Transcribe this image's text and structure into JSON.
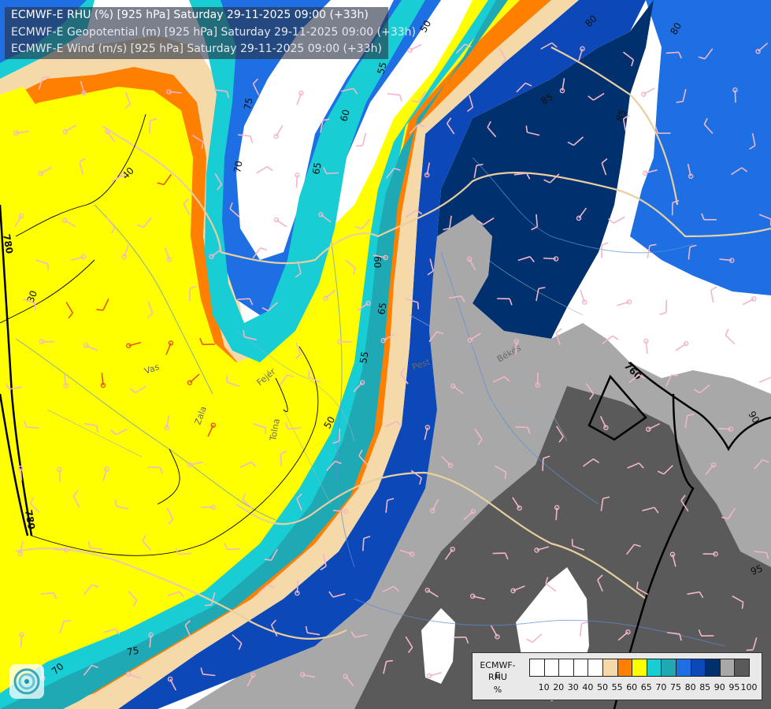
{
  "title": {
    "line1": "ECMWF-E RHU (%) [925 hPa] Saturday 29-11-2025 09:00 (+33h)",
    "line2": "ECMWF-E Geopotential (m) [925 hPa] Saturday 29-11-2025 09:00 (+33h)",
    "line3": "ECMWF-E Wind (m/s) [925 hPa] Saturday 29-11-2025 09:00 (+33h)"
  },
  "legend": {
    "label_line1": "ECMWF-E",
    "label_line2": "RHU",
    "label_line3": "%",
    "bins": [
      {
        "tick": "10",
        "color": "#ffffff"
      },
      {
        "tick": "20",
        "color": "#ffffff"
      },
      {
        "tick": "30",
        "color": "#ffffff"
      },
      {
        "tick": "40",
        "color": "#ffffff"
      },
      {
        "tick": "50",
        "color": "#ffffff"
      },
      {
        "tick": "55",
        "color": "#f5d9a8"
      },
      {
        "tick": "60",
        "color": "#ff7f00"
      },
      {
        "tick": "65",
        "color": "#ffff00"
      },
      {
        "tick": "70",
        "color": "#19cdd4"
      },
      {
        "tick": "75",
        "color": "#1fa9b4"
      },
      {
        "tick": "80",
        "color": "#1e6fe3"
      },
      {
        "tick": "85",
        "color": "#0d48b8"
      },
      {
        "tick": "90",
        "color": "#00306e"
      },
      {
        "tick": "95",
        "color": "#a8a8a8"
      },
      {
        "tick": "100",
        "color": "#5a5a5a"
      }
    ]
  },
  "rhu_labels": [
    "40",
    "30",
    "50",
    "55",
    "60",
    "65",
    "70",
    "75",
    "80",
    "85",
    "90",
    "95"
  ],
  "geopotential_labels": [
    "780",
    "760"
  ],
  "place_labels": [
    "Vas",
    "Zala",
    "Tolna",
    "Fejér",
    "Pest",
    "Békés"
  ],
  "colors": {
    "title_bg": "#283246",
    "contour": "#000000",
    "border": "#e8cfa0",
    "river": "#5b8fd6",
    "wind_barb": "#f2b6c8",
    "wind_barb_dry": "#e4571c"
  },
  "icons": [
    "logo-icon",
    "wind-barb-icon"
  ]
}
